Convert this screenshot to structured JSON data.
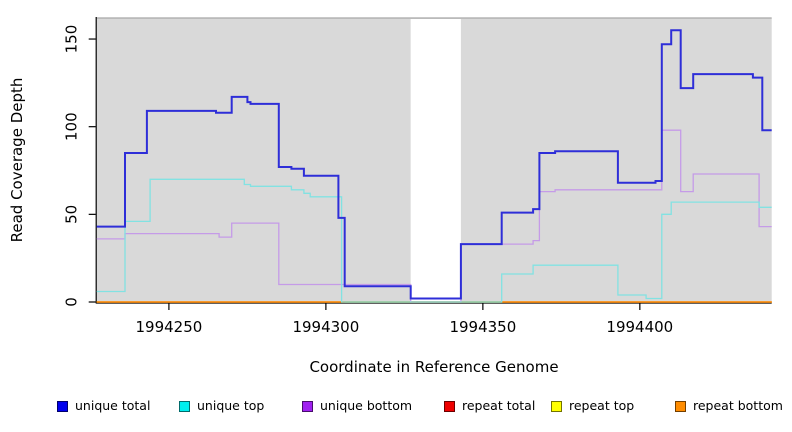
{
  "chart_data": {
    "type": "line",
    "subtype": "step-coverage",
    "title": "",
    "xlabel": "Coordinate in Reference Genome",
    "ylabel": "Read Coverage Depth",
    "x_range": [
      1994227,
      1994442
    ],
    "y_range": [
      0,
      162
    ],
    "x_ticks": [
      1994250,
      1994300,
      1994350,
      1994400
    ],
    "y_ticks": [
      0,
      50,
      100,
      150
    ],
    "grid": "off",
    "panel_bg": "#d9d9d9",
    "panel_top_edge_color": "#a8a8a8",
    "axis_color": "#000000",
    "gap_band": {
      "from": 1994327,
      "to": 1994343,
      "color": "#ffffff"
    },
    "zero_overlay": {
      "from": 1994306,
      "to": 1994356,
      "value": 0,
      "color": "#7cc87c"
    },
    "legend_position": "bottom",
    "series": [
      {
        "name": "unique total",
        "legend_color": "#0000ee",
        "line_color": "#2e2ed8",
        "line_width": 2,
        "points": [
          [
            1994227,
            43
          ],
          [
            1994236,
            85
          ],
          [
            1994243,
            109
          ],
          [
            1994265,
            108
          ],
          [
            1994270,
            117
          ],
          [
            1994275,
            114
          ],
          [
            1994276,
            113
          ],
          [
            1994285,
            77
          ],
          [
            1994289,
            76
          ],
          [
            1994293,
            72
          ],
          [
            1994304,
            48
          ],
          [
            1994306,
            9
          ],
          [
            1994327,
            2
          ],
          [
            1994343,
            33
          ],
          [
            1994356,
            51
          ],
          [
            1994366,
            53
          ],
          [
            1994368,
            85
          ],
          [
            1994373,
            86
          ],
          [
            1994393,
            68
          ],
          [
            1994405,
            69
          ],
          [
            1994407,
            147
          ],
          [
            1994410,
            155
          ],
          [
            1994413,
            122
          ],
          [
            1994417,
            130
          ],
          [
            1994436,
            128
          ],
          [
            1994439,
            98
          ],
          [
            1994442,
            98
          ]
        ]
      },
      {
        "name": "unique top",
        "legend_color": "#00eeee",
        "line_color": "#82e2e2",
        "line_width": 1.3,
        "points": [
          [
            1994227,
            6
          ],
          [
            1994236,
            46
          ],
          [
            1994244,
            70
          ],
          [
            1994274,
            67
          ],
          [
            1994276,
            66
          ],
          [
            1994289,
            64
          ],
          [
            1994293,
            62
          ],
          [
            1994295,
            60
          ],
          [
            1994305,
            0
          ],
          [
            1994356,
            16
          ],
          [
            1994366,
            21
          ],
          [
            1994393,
            4
          ],
          [
            1994402,
            2
          ],
          [
            1994407,
            50
          ],
          [
            1994410,
            57
          ],
          [
            1994438,
            54
          ],
          [
            1994442,
            54
          ]
        ]
      },
      {
        "name": "unique bottom",
        "legend_color": "#a020f0",
        "line_color": "#c59be8",
        "line_width": 1.3,
        "points": [
          [
            1994227,
            36
          ],
          [
            1994236,
            39
          ],
          [
            1994266,
            37
          ],
          [
            1994270,
            45
          ],
          [
            1994285,
            10
          ],
          [
            1994327,
            0
          ],
          [
            1994343,
            33
          ],
          [
            1994366,
            35
          ],
          [
            1994368,
            63
          ],
          [
            1994373,
            64
          ],
          [
            1994407,
            98
          ],
          [
            1994413,
            63
          ],
          [
            1994417,
            73
          ],
          [
            1994438,
            43
          ],
          [
            1994442,
            43
          ]
        ]
      },
      {
        "name": "repeat total",
        "legend_color": "#ee0000",
        "line_color": "#ee0000",
        "line_width": 1.3,
        "points": [
          [
            1994227,
            0
          ],
          [
            1994442,
            0
          ]
        ]
      },
      {
        "name": "repeat top",
        "legend_color": "#ffff00",
        "line_color": "#ffff00",
        "line_width": 1.3,
        "points": [
          [
            1994227,
            0
          ],
          [
            1994442,
            0
          ]
        ]
      },
      {
        "name": "repeat bottom",
        "legend_color": "#ff8c00",
        "line_color": "#ff9015",
        "line_width": 1.6,
        "points": [
          [
            1994227,
            0
          ],
          [
            1994442,
            0
          ]
        ]
      }
    ]
  }
}
